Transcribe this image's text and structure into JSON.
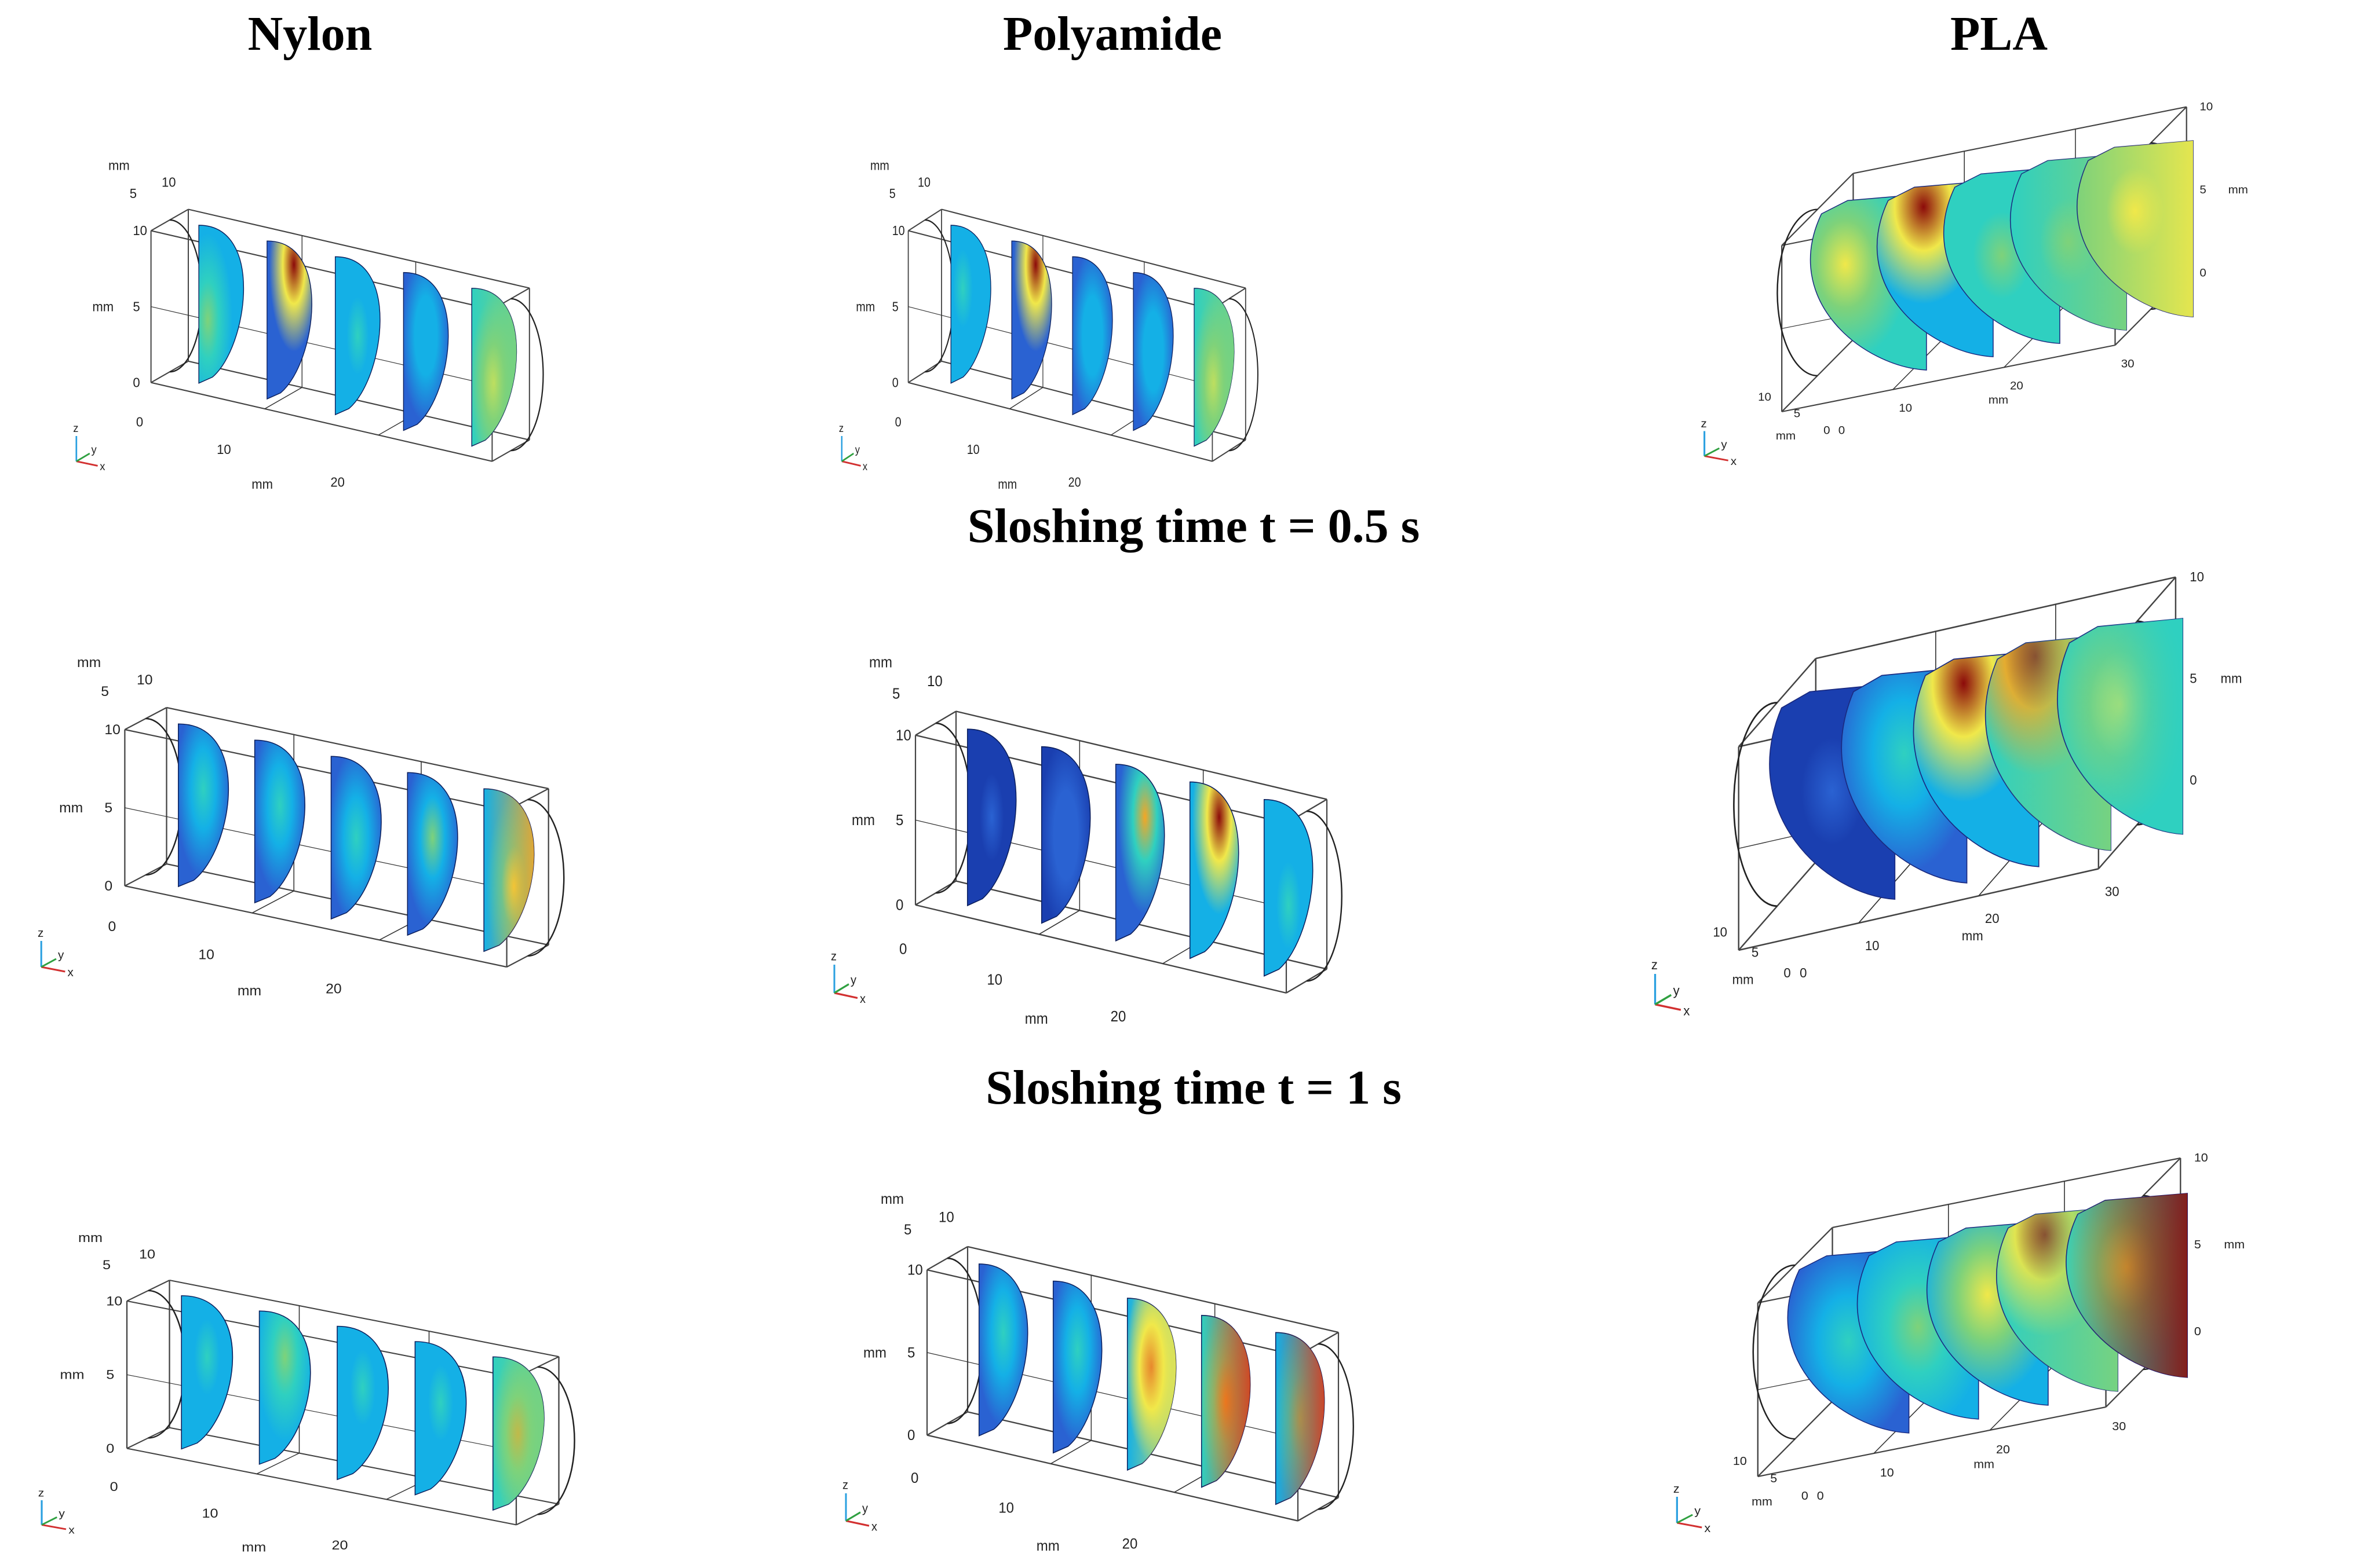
{
  "columns": [
    {
      "title": "Nylon"
    },
    {
      "title": "Polyamide"
    },
    {
      "title": "PLA"
    }
  ],
  "time_titles": {
    "t05": "Sloshing time t = 0.5 s",
    "t1": "Sloshing time t = 1 s"
  },
  "axis": {
    "unit": "mm",
    "x_ticks": [
      "10",
      "20",
      "30"
    ],
    "z_ticks": [
      "0",
      "5",
      "10"
    ],
    "y_ticks": [
      "0",
      "5",
      "10"
    ],
    "origin": "0",
    "triad": {
      "z": "z",
      "y": "y",
      "x": "x"
    }
  },
  "colormap": [
    "#0b1e8c",
    "#1a3fb0",
    "#2a62d2",
    "#14b0e6",
    "#2fd0c0",
    "#7ed27a",
    "#f0e84a",
    "#f5a624",
    "#e03b15",
    "#8c0a0a"
  ],
  "panels": [
    {
      "id": "nylon-t0",
      "material": "Nylon",
      "row": 0,
      "style": "classic",
      "slices": [
        {
          "base": 0.3,
          "hot": [
            0.2,
            0.6,
            0.5
          ],
          "edge": 0
        },
        {
          "base": 0.25,
          "hot": [
            0.6,
            0.15,
            1.0
          ],
          "edge": 0
        },
        {
          "base": 0.3,
          "hot": [
            0.5,
            0.5,
            0.4
          ],
          "edge": 0
        },
        {
          "base": 0.25,
          "hot": [
            0.5,
            0.4,
            0.35
          ],
          "edge": 0
        },
        {
          "base": 0.45,
          "hot": [
            0.5,
            0.6,
            0.6
          ],
          "edge": 0.5
        }
      ]
    },
    {
      "id": "polyamide-t0",
      "material": "Polyamide",
      "row": 0,
      "style": "classic",
      "slices": [
        {
          "base": 0.3,
          "hot": [
            0.3,
            0.4,
            0.45
          ],
          "edge": 0
        },
        {
          "base": 0.25,
          "hot": [
            0.6,
            0.15,
            1.0
          ],
          "edge": 0
        },
        {
          "base": 0.25,
          "hot": [
            0.5,
            0.5,
            0.35
          ],
          "edge": 0
        },
        {
          "base": 0.25,
          "hot": [
            0.5,
            0.5,
            0.35
          ],
          "edge": 0
        },
        {
          "base": 0.45,
          "hot": [
            0.5,
            0.6,
            0.6
          ],
          "edge": 0.5
        }
      ]
    },
    {
      "id": "pla-t0",
      "material": "PLA",
      "row": 0,
      "style": "jet",
      "slices": [
        {
          "base": 0.45,
          "hot": [
            0.3,
            0.4,
            0.6
          ],
          "edge": 0
        },
        {
          "base": 0.35,
          "hot": [
            0.4,
            0.15,
            1.0
          ],
          "edge": 0
        },
        {
          "base": 0.4,
          "hot": [
            0.5,
            0.5,
            0.5
          ],
          "edge": 0
        },
        {
          "base": 0.4,
          "hot": [
            0.5,
            0.5,
            0.55
          ],
          "edge": 0.5
        },
        {
          "base": 0.5,
          "hot": [
            0.5,
            0.4,
            0.65
          ],
          "edge": 0.6
        }
      ]
    },
    {
      "id": "nylon-t05",
      "material": "Nylon",
      "row": 1,
      "style": "classic",
      "slices": [
        {
          "base": 0.25,
          "hot": [
            0.5,
            0.4,
            0.45
          ],
          "edge": 0
        },
        {
          "base": 0.25,
          "hot": [
            0.5,
            0.4,
            0.45
          ],
          "edge": 0
        },
        {
          "base": 0.25,
          "hot": [
            0.5,
            0.5,
            0.45
          ],
          "edge": 0
        },
        {
          "base": 0.25,
          "hot": [
            0.5,
            0.4,
            0.5
          ],
          "edge": 0
        },
        {
          "base": 0.3,
          "hot": [
            0.6,
            0.6,
            0.65
          ],
          "edge": 0.7
        }
      ]
    },
    {
      "id": "polyamide-t05",
      "material": "Polyamide",
      "row": 1,
      "style": "classic",
      "slices": [
        {
          "base": 0.1,
          "hot": [
            0.5,
            0.5,
            0.2
          ],
          "edge": 0
        },
        {
          "base": 0.15,
          "hot": [
            0.5,
            0.5,
            0.25
          ],
          "edge": 0
        },
        {
          "base": 0.2,
          "hot": [
            0.6,
            0.3,
            0.7
          ],
          "edge": 0
        },
        {
          "base": 0.3,
          "hot": [
            0.6,
            0.2,
            0.9
          ],
          "edge": 0
        },
        {
          "base": 0.3,
          "hot": [
            0.5,
            0.6,
            0.45
          ],
          "edge": 0
        }
      ]
    },
    {
      "id": "pla-t05",
      "material": "PLA",
      "row": 1,
      "style": "jet",
      "slices": [
        {
          "base": 0.15,
          "hot": [
            0.5,
            0.5,
            0.2
          ],
          "edge": 0
        },
        {
          "base": 0.25,
          "hot": [
            0.5,
            0.4,
            0.4
          ],
          "edge": 0
        },
        {
          "base": 0.35,
          "hot": [
            0.4,
            0.15,
            0.95
          ],
          "edge": 0
        },
        {
          "base": 0.4,
          "hot": [
            0.4,
            0.1,
            1.0
          ],
          "edge": 0.5
        },
        {
          "base": 0.45,
          "hot": [
            0.5,
            0.4,
            0.6
          ],
          "edge": 0.4
        }
      ]
    },
    {
      "id": "nylon-t1",
      "material": "Nylon",
      "row": 2,
      "style": "classic",
      "slices": [
        {
          "base": 0.3,
          "hot": [
            0.5,
            0.4,
            0.45
          ],
          "edge": 0
        },
        {
          "base": 0.3,
          "hot": [
            0.5,
            0.3,
            0.55
          ],
          "edge": 0
        },
        {
          "base": 0.3,
          "hot": [
            0.5,
            0.4,
            0.45
          ],
          "edge": 0
        },
        {
          "base": 0.3,
          "hot": [
            0.5,
            0.4,
            0.45
          ],
          "edge": 0
        },
        {
          "base": 0.4,
          "hot": [
            0.5,
            0.5,
            0.7
          ],
          "edge": 0.5
        }
      ]
    },
    {
      "id": "polyamide-t1",
      "material": "Polyamide",
      "row": 2,
      "style": "classic",
      "slices": [
        {
          "base": 0.25,
          "hot": [
            0.5,
            0.4,
            0.4
          ],
          "edge": 0
        },
        {
          "base": 0.25,
          "hot": [
            0.5,
            0.4,
            0.45
          ],
          "edge": 0
        },
        {
          "base": 0.35,
          "hot": [
            0.5,
            0.4,
            0.85
          ],
          "edge": 0.6
        },
        {
          "base": 0.4,
          "hot": [
            0.5,
            0.5,
            0.7
          ],
          "edge": 0.85
        },
        {
          "base": 0.35,
          "hot": [
            0.5,
            0.5,
            0.5
          ],
          "edge": 0.85
        }
      ]
    },
    {
      "id": "pla-t1",
      "material": "PLA",
      "row": 2,
      "style": "jet",
      "slices": [
        {
          "base": 0.25,
          "hot": [
            0.5,
            0.5,
            0.4
          ],
          "edge": 0
        },
        {
          "base": 0.3,
          "hot": [
            0.5,
            0.5,
            0.55
          ],
          "edge": 0
        },
        {
          "base": 0.35,
          "hot": [
            0.5,
            0.4,
            0.65
          ],
          "edge": 0
        },
        {
          "base": 0.4,
          "hot": [
            0.4,
            0.15,
            0.9
          ],
          "edge": 0.5
        },
        {
          "base": 0.45,
          "hot": [
            0.5,
            0.4,
            0.6
          ],
          "edge": 0.9
        }
      ]
    }
  ]
}
